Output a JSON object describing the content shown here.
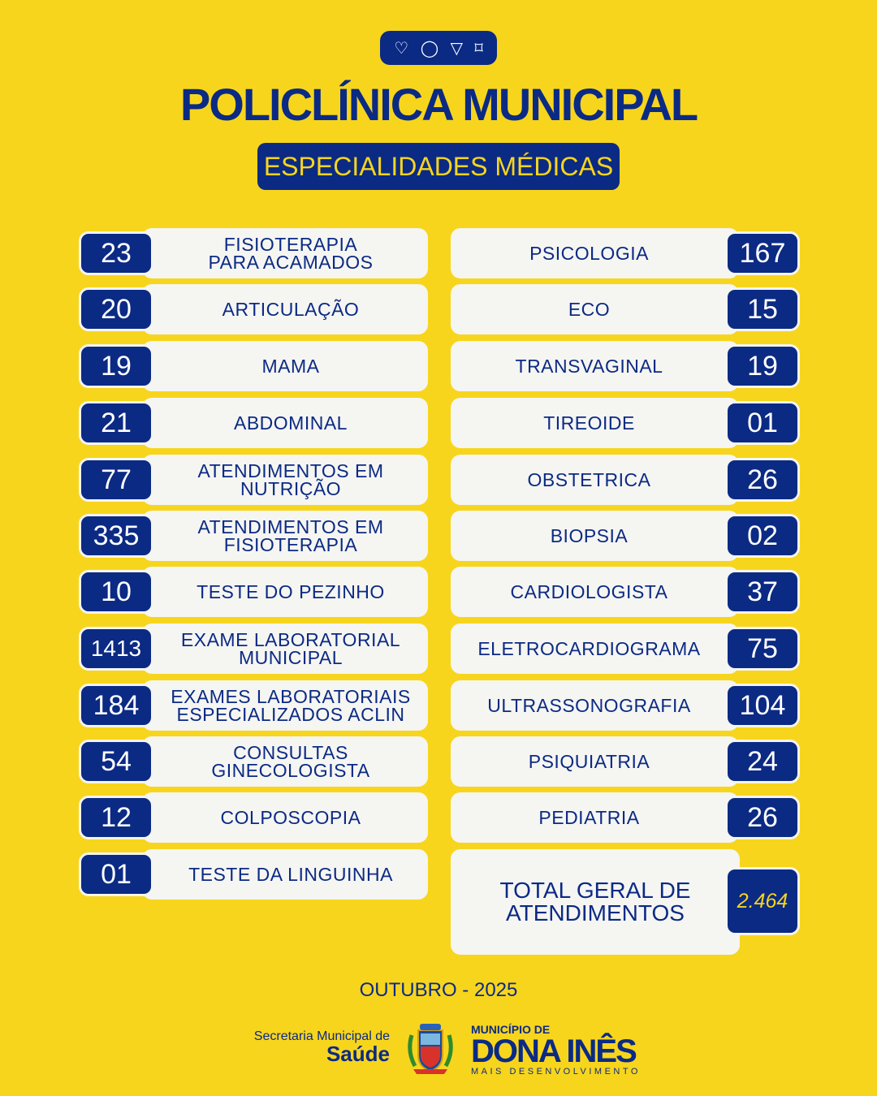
{
  "header": {
    "icons": [
      "heart-icon",
      "comment-icon",
      "send-icon",
      "bookmark-icon"
    ],
    "title": "POLICLÍNICA MUNICIPAL",
    "subtitle": "ESPECIALIDADES MÉDICAS"
  },
  "left": [
    {
      "label": "FISIOTERAPIA\nPARA ACAMADOS",
      "value": "23"
    },
    {
      "label": "ARTICULAÇÃO",
      "value": "20"
    },
    {
      "label": "MAMA",
      "value": "19"
    },
    {
      "label": "ABDOMINAL",
      "value": "21"
    },
    {
      "label": "ATENDIMENTOS EM\nNUTRIÇÃO",
      "value": "77"
    },
    {
      "label": "ATENDIMENTOS EM\nFISIOTERAPIA",
      "value": "335"
    },
    {
      "label": "TESTE DO PEZINHO",
      "value": "10"
    },
    {
      "label": "EXAME LABORATORIAL\nMUNICIPAL",
      "value": "1413"
    },
    {
      "label": "EXAMES LABORATORIAIS\nESPECIALIZADOS ACLIN",
      "value": "184"
    },
    {
      "label": "CONSULTAS\nGINECOLOGISTA",
      "value": "54"
    },
    {
      "label": "COLPOSCOPIA",
      "value": "12"
    },
    {
      "label": "TESTE DA LINGUINHA",
      "value": "01"
    }
  ],
  "right": [
    {
      "label": "PSICOLOGIA",
      "value": "167"
    },
    {
      "label": "ECO",
      "value": "15"
    },
    {
      "label": "TRANSVAGINAL",
      "value": "19"
    },
    {
      "label": "TIREOIDE",
      "value": "01"
    },
    {
      "label": "OBSTETRICA",
      "value": "26"
    },
    {
      "label": "BIOPSIA",
      "value": "02"
    },
    {
      "label": "CARDIOLOGISTA",
      "value": "37"
    },
    {
      "label": "ELETROCARDIOGRAMA",
      "value": "75"
    },
    {
      "label": "ULTRASSONOGRAFIA",
      "value": "104"
    },
    {
      "label": "PSIQUIATRIA",
      "value": "24"
    },
    {
      "label": "PEDIATRIA",
      "value": "26"
    }
  ],
  "total": {
    "label": "TOTAL GERAL DE\nATENDIMENTOS",
    "value": "2.464"
  },
  "footer": {
    "period": "OUTUBRO - 2025",
    "secretaria_line1": "Secretaria Municipal de",
    "secretaria_line2": "Saúde",
    "municipio_line1": "MUNICÍPIO DE",
    "municipio_name": "DONA INÊS",
    "municipio_slogan": "MAIS DESENVOLVIMENTO"
  },
  "colors": {
    "background": "#F7D51D",
    "navy": "#0B2A84",
    "card": "#F5F5F2"
  }
}
